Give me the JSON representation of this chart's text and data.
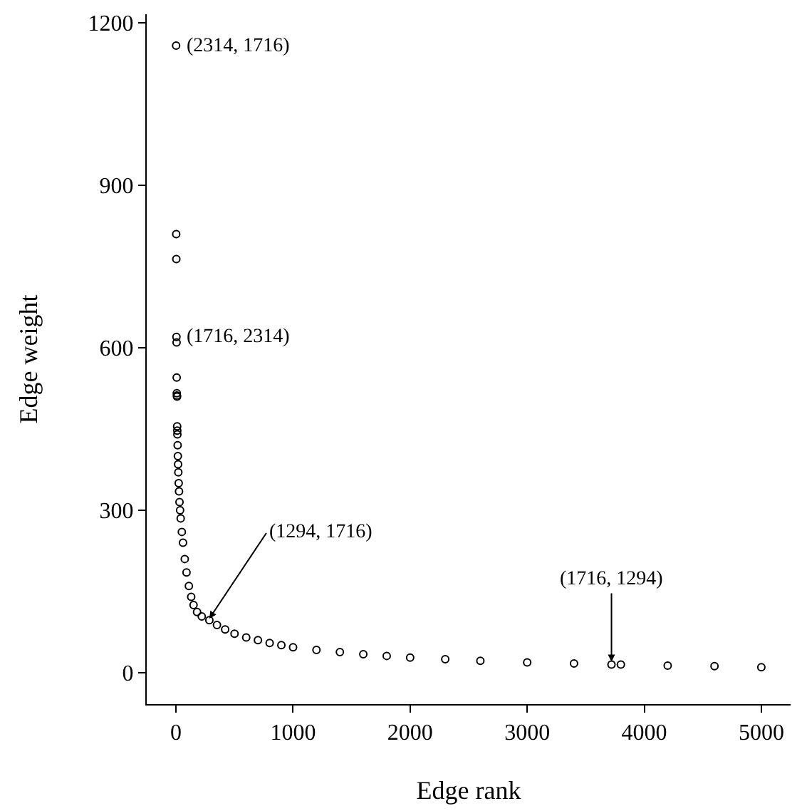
{
  "chart_data": {
    "type": "scatter",
    "xlabel": "Edge rank",
    "ylabel": "Edge weight",
    "marker": "circle",
    "xlim": [
      -250,
      5250
    ],
    "xticks": [
      0,
      1000,
      2000,
      3000,
      4000,
      5000
    ],
    "ylim": [
      -58,
      1216
    ],
    "yticks": [
      0,
      300,
      600,
      900,
      1200
    ],
    "series": [
      {
        "color": "#000000",
        "x": [
          1,
          2,
          3,
          4,
          5,
          6,
          7,
          8,
          9,
          10,
          11,
          12,
          14,
          16,
          18,
          20,
          23,
          26,
          30,
          35,
          40,
          50,
          60,
          75,
          90,
          110,
          130,
          150,
          180,
          220,
          285,
          350,
          420,
          500,
          600,
          700,
          800,
          900,
          1000,
          1200,
          1400,
          1600,
          1800,
          2000,
          2300,
          2600,
          3000,
          3400,
          3720,
          3800,
          4200,
          4600,
          5000
        ],
        "values": [
          1158,
          810,
          764,
          620,
          610,
          545,
          516,
          512,
          510,
          455,
          447,
          440,
          420,
          400,
          385,
          370,
          350,
          335,
          315,
          300,
          285,
          260,
          240,
          210,
          185,
          160,
          140,
          125,
          112,
          104,
          97,
          88,
          80,
          72,
          65,
          60,
          55,
          51,
          47,
          42,
          38,
          34,
          31,
          28,
          25,
          22,
          19,
          17,
          15,
          15,
          13,
          12,
          10
        ]
      }
    ],
    "annotations": [
      {
        "text": "(2314, 1716)",
        "x": 1,
        "y": 1158
      },
      {
        "text": "(1716, 2314)",
        "x": 4,
        "y": 620
      },
      {
        "text": "(1294, 1716)",
        "x": 285,
        "y": 100
      },
      {
        "text": "(1716, 1294)",
        "x": 3720,
        "y": 15
      }
    ]
  }
}
